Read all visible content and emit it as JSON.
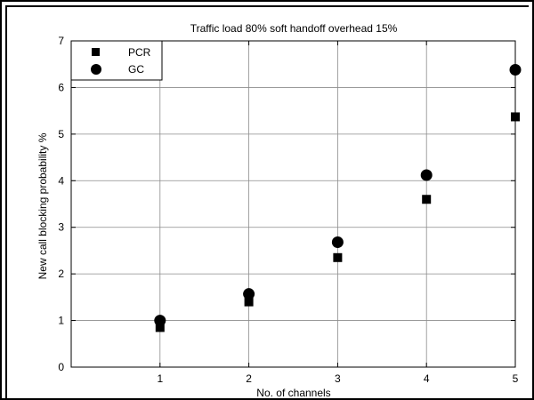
{
  "chart_data": {
    "type": "scatter",
    "title": "Traffic load 80% soft handoff overhead 15%",
    "xlabel": "No. of channels",
    "ylabel": "New call blocking probability %",
    "xlim": [
      0,
      5
    ],
    "ylim": [
      0,
      7
    ],
    "xticks": [
      "1",
      "2",
      "3",
      "4",
      "5"
    ],
    "yticks": [
      "0",
      "1",
      "2",
      "3",
      "4",
      "5",
      "6",
      "7"
    ],
    "grid": true,
    "legend_position": "top-left",
    "series": [
      {
        "name": "PCR",
        "marker": "square",
        "color": "#000000",
        "x": [
          1,
          2,
          3,
          4,
          5
        ],
        "y": [
          0.85,
          1.4,
          2.35,
          3.6,
          5.37
        ]
      },
      {
        "name": "GC",
        "marker": "circle",
        "color": "#000000",
        "x": [
          1,
          2,
          3,
          4,
          5
        ],
        "y": [
          1.0,
          1.57,
          2.68,
          4.12,
          6.38
        ]
      }
    ]
  }
}
